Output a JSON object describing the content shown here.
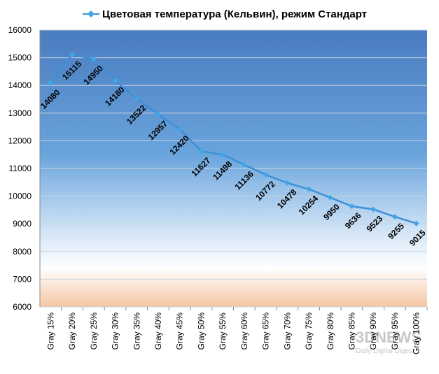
{
  "chart_data": {
    "type": "line",
    "title": "Цветовая температура (Кельвин), режим Стандарт",
    "categories": [
      "Gray 15%",
      "Gray 20%",
      "Gray 25%",
      "Gray 30%",
      "Gray 35%",
      "Gray 40%",
      "Gray 45%",
      "Gray 50%",
      "Gray 55%",
      "Gray 60%",
      "Gray 65%",
      "Gray 70%",
      "Gray 75%",
      "Gray 80%",
      "Gray 85%",
      "Gray 90%",
      "Gray 95%",
      "Gray 100%"
    ],
    "series": [
      {
        "name": "Цветовая температура (Кельвин), режим Стандарт",
        "color": "#3f8fd6",
        "values": [
          14080,
          15115,
          14950,
          14180,
          13522,
          12957,
          12420,
          11627,
          11498,
          11136,
          10772,
          10478,
          10254,
          9950,
          9636,
          9523,
          9255,
          9015
        ]
      }
    ],
    "ylim": [
      6000,
      16000
    ],
    "yticks": [
      6000,
      7000,
      8000,
      9000,
      10000,
      11000,
      12000,
      13000,
      14000,
      15000,
      16000
    ],
    "grid": true,
    "data_labels": true,
    "watermark": [
      "3DNEWS",
      "Daily Digital Digest"
    ]
  }
}
